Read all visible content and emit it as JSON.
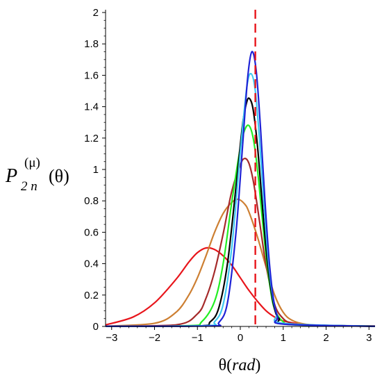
{
  "chart_data": {
    "type": "line",
    "title": "",
    "xlabel": {
      "prefix": "θ(",
      "italic": "rad",
      "suffix": ")"
    },
    "ylabel": {
      "base": "P",
      "superscript": "(μ)",
      "subscript": "2 n",
      "argument": "(θ)"
    },
    "xlim": [
      -3.14159,
      3.14159
    ],
    "ylim": [
      0,
      2
    ],
    "xticks": [
      -3,
      -2,
      -1,
      0,
      1,
      2,
      3
    ],
    "yticks": [
      0,
      0.2,
      0.4,
      0.6,
      0.8,
      1,
      1.2,
      1.4,
      1.6,
      1.8,
      2
    ],
    "ytick_labels": [
      "0",
      "0.2",
      "0.4",
      "0.6",
      "0.8",
      "1",
      "1.2",
      "1.4",
      "1.6",
      "1.8",
      "2"
    ],
    "grid": false,
    "legend": "none",
    "reference_line": {
      "x": 0.35,
      "style": "dashed",
      "color": "#e8151b"
    },
    "series": [
      {
        "color": "#e8151b",
        "peak_x": -0.8,
        "peak_y": 0.5,
        "points": [
          [
            -3.14,
            0.01
          ],
          [
            -2.5,
            0.06
          ],
          [
            -2,
            0.15
          ],
          [
            -1.5,
            0.3
          ],
          [
            -1.2,
            0.41
          ],
          [
            -1,
            0.47
          ],
          [
            -0.8,
            0.5
          ],
          [
            -0.6,
            0.49
          ],
          [
            -0.4,
            0.45
          ],
          [
            -0.2,
            0.39
          ],
          [
            0,
            0.31
          ],
          [
            0.2,
            0.23
          ],
          [
            0.4,
            0.16
          ],
          [
            0.6,
            0.1
          ],
          [
            0.8,
            0.06
          ],
          [
            1,
            0.035
          ],
          [
            1.5,
            0.012
          ],
          [
            2,
            0.005
          ],
          [
            3.14,
            0.003
          ]
        ]
      },
      {
        "color": "#cd7f32",
        "peak_x": -0.05,
        "peak_y": 0.81,
        "points": [
          [
            -3.14,
            0.002
          ],
          [
            -2,
            0.02
          ],
          [
            -1.5,
            0.09
          ],
          [
            -1.2,
            0.2
          ],
          [
            -1,
            0.31
          ],
          [
            -0.8,
            0.45
          ],
          [
            -0.6,
            0.6
          ],
          [
            -0.4,
            0.72
          ],
          [
            -0.2,
            0.79
          ],
          [
            -0.05,
            0.81
          ],
          [
            0.1,
            0.78
          ],
          [
            0.2,
            0.73
          ],
          [
            0.4,
            0.57
          ],
          [
            0.6,
            0.38
          ],
          [
            0.8,
            0.2
          ],
          [
            1,
            0.09
          ],
          [
            1.2,
            0.04
          ],
          [
            1.5,
            0.015
          ],
          [
            2,
            0.006
          ],
          [
            3.14,
            0.003
          ]
        ]
      },
      {
        "color": "#a52a2a",
        "peak_x": 0.1,
        "peak_y": 1.07,
        "points": [
          [
            -3.14,
            0.001
          ],
          [
            -1.5,
            0.01
          ],
          [
            -1,
            0.08
          ],
          [
            -0.8,
            0.18
          ],
          [
            -0.6,
            0.35
          ],
          [
            -0.4,
            0.59
          ],
          [
            -0.2,
            0.86
          ],
          [
            0,
            1.03
          ],
          [
            0.1,
            1.07
          ],
          [
            0.2,
            1.04
          ],
          [
            0.3,
            0.93
          ],
          [
            0.4,
            0.76
          ],
          [
            0.5,
            0.57
          ],
          [
            0.6,
            0.39
          ],
          [
            0.8,
            0.14
          ],
          [
            1,
            0.05
          ],
          [
            1.2,
            0.02
          ],
          [
            1.5,
            0.008
          ],
          [
            3.14,
            0.002
          ]
        ]
      },
      {
        "color": "#22ee22",
        "peak_x": 0.2,
        "peak_y": 1.28,
        "points": [
          [
            -3.14,
            0.001
          ],
          [
            -1.2,
            0.005
          ],
          [
            -0.9,
            0.03
          ],
          [
            -0.6,
            0.16
          ],
          [
            -0.4,
            0.4
          ],
          [
            -0.2,
            0.79
          ],
          [
            0,
            1.14
          ],
          [
            0.1,
            1.25
          ],
          [
            0.2,
            1.28
          ],
          [
            0.3,
            1.2
          ],
          [
            0.4,
            1.0
          ],
          [
            0.5,
            0.72
          ],
          [
            0.6,
            0.45
          ],
          [
            0.7,
            0.24
          ],
          [
            0.8,
            0.11
          ],
          [
            1,
            0.03
          ],
          [
            1.3,
            0.01
          ],
          [
            3.14,
            0.002
          ]
        ]
      },
      {
        "color": "#000000",
        "peak_x": 0.22,
        "peak_y": 1.45,
        "points": [
          [
            -3.14,
            0.001
          ],
          [
            -1,
            0.003
          ],
          [
            -0.7,
            0.03
          ],
          [
            -0.5,
            0.12
          ],
          [
            -0.3,
            0.4
          ],
          [
            -0.1,
            0.89
          ],
          [
            0.05,
            1.28
          ],
          [
            0.15,
            1.43
          ],
          [
            0.22,
            1.45
          ],
          [
            0.3,
            1.38
          ],
          [
            0.4,
            1.15
          ],
          [
            0.5,
            0.82
          ],
          [
            0.6,
            0.5
          ],
          [
            0.7,
            0.26
          ],
          [
            0.8,
            0.11
          ],
          [
            0.9,
            0.05
          ],
          [
            1.1,
            0.015
          ],
          [
            3.14,
            0.001
          ]
        ]
      },
      {
        "color": "#3ec8f0",
        "peak_x": 0.25,
        "peak_y": 1.61,
        "points": [
          [
            -3.14,
            0.001
          ],
          [
            -0.8,
            0.005
          ],
          [
            -0.6,
            0.03
          ],
          [
            -0.4,
            0.14
          ],
          [
            -0.2,
            0.5
          ],
          [
            0,
            1.11
          ],
          [
            0.15,
            1.52
          ],
          [
            0.25,
            1.61
          ],
          [
            0.35,
            1.5
          ],
          [
            0.45,
            1.18
          ],
          [
            0.55,
            0.78
          ],
          [
            0.65,
            0.43
          ],
          [
            0.75,
            0.2
          ],
          [
            0.85,
            0.08
          ],
          [
            1,
            0.02
          ],
          [
            3.14,
            0.001
          ]
        ]
      },
      {
        "color": "#1e22d6",
        "peak_x": 0.27,
        "peak_y": 1.75,
        "points": [
          [
            -3.14,
            0.001
          ],
          [
            -0.7,
            0.003
          ],
          [
            -0.5,
            0.025
          ],
          [
            -0.3,
            0.15
          ],
          [
            -0.1,
            0.6
          ],
          [
            0.05,
            1.14
          ],
          [
            0.17,
            1.58
          ],
          [
            0.27,
            1.75
          ],
          [
            0.37,
            1.63
          ],
          [
            0.47,
            1.27
          ],
          [
            0.57,
            0.82
          ],
          [
            0.67,
            0.43
          ],
          [
            0.77,
            0.18
          ],
          [
            0.87,
            0.06
          ],
          [
            1,
            0.015
          ],
          [
            3.14,
            0.001
          ]
        ]
      }
    ]
  }
}
